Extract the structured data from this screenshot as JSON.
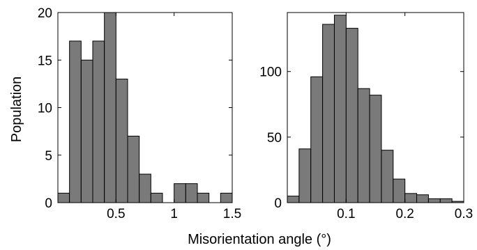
{
  "chart_data": [
    {
      "type": "bar",
      "xlim": [
        0,
        1.5
      ],
      "ylim": [
        0,
        20
      ],
      "bin_width": 0.1,
      "x_ticks": [
        "0.5",
        "1",
        "1.5"
      ],
      "x_tick_values": [
        0.5,
        1,
        1.5
      ],
      "y_ticks": [
        "0",
        "5",
        "10",
        "15",
        "20"
      ],
      "y_tick_values": [
        0,
        5,
        10,
        15,
        20
      ],
      "bins": [
        {
          "x": 0.05,
          "value": 1
        },
        {
          "x": 0.15,
          "value": 17
        },
        {
          "x": 0.25,
          "value": 15
        },
        {
          "x": 0.35,
          "value": 17
        },
        {
          "x": 0.45,
          "value": 20
        },
        {
          "x": 0.55,
          "value": 13
        },
        {
          "x": 0.65,
          "value": 7
        },
        {
          "x": 0.75,
          "value": 3
        },
        {
          "x": 0.85,
          "value": 1
        },
        {
          "x": 0.95,
          "value": 0
        },
        {
          "x": 1.05,
          "value": 2
        },
        {
          "x": 1.15,
          "value": 2
        },
        {
          "x": 1.25,
          "value": 1
        },
        {
          "x": 1.35,
          "value": 0
        },
        {
          "x": 1.45,
          "value": 1
        }
      ],
      "bar_color": "#7a7a7a"
    },
    {
      "type": "bar",
      "xlim": [
        0,
        0.3
      ],
      "ylim": [
        0,
        145
      ],
      "bin_width": 0.02,
      "x_ticks": [
        "0.1",
        "0.2",
        "0.3"
      ],
      "x_tick_values": [
        0.1,
        0.2,
        0.3
      ],
      "y_ticks": [
        "0",
        "50",
        "100"
      ],
      "y_tick_values": [
        0,
        50,
        100
      ],
      "bins": [
        {
          "x": 0.01,
          "value": 5
        },
        {
          "x": 0.03,
          "value": 41
        },
        {
          "x": 0.05,
          "value": 96
        },
        {
          "x": 0.07,
          "value": 136
        },
        {
          "x": 0.09,
          "value": 143
        },
        {
          "x": 0.11,
          "value": 133
        },
        {
          "x": 0.13,
          "value": 87
        },
        {
          "x": 0.15,
          "value": 82
        },
        {
          "x": 0.17,
          "value": 40
        },
        {
          "x": 0.19,
          "value": 18
        },
        {
          "x": 0.21,
          "value": 7
        },
        {
          "x": 0.23,
          "value": 6
        },
        {
          "x": 0.25,
          "value": 3
        },
        {
          "x": 0.27,
          "value": 3
        },
        {
          "x": 0.29,
          "value": 1
        }
      ],
      "bar_color": "#7a7a7a"
    }
  ],
  "ylabel": "Population",
  "xlabel": "Misorientation angle (°)"
}
